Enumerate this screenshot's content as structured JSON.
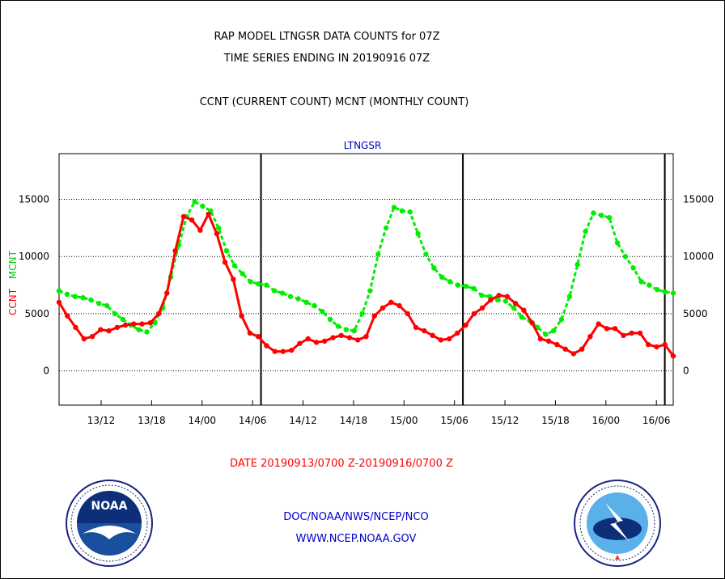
{
  "header": {
    "title_line1": "RAP MODEL LTNGSR DATA COUNTS for 07Z",
    "title_line2": "TIME SERIES ENDING IN 20190916 07Z",
    "subtitle": "CCNT (CURRENT COUNT) MCNT (MONTHLY COUNT)"
  },
  "chart_data": {
    "type": "line",
    "title": "LTNGSR",
    "ylabel_ccnt": "CCNT",
    "ylabel_mcnt": "MCNT",
    "xlabel": "DATE 20190913/0700 Z-20190916/0700 Z",
    "ylim": [
      -3000,
      19000
    ],
    "yticks": [
      0,
      5000,
      10000,
      15000
    ],
    "ytick_labels": [
      "0",
      "5000",
      "10000",
      "15000"
    ],
    "xlim_hours": [
      7,
      80
    ],
    "xticks": [
      {
        "hours": 12,
        "label": "13/12"
      },
      {
        "hours": 18,
        "label": "13/18"
      },
      {
        "hours": 24,
        "label": "14/00"
      },
      {
        "hours": 30,
        "label": "14/06"
      },
      {
        "hours": 36,
        "label": "14/12"
      },
      {
        "hours": 42,
        "label": "14/18"
      },
      {
        "hours": 48,
        "label": "15/00"
      },
      {
        "hours": 54,
        "label": "15/06"
      },
      {
        "hours": 60,
        "label": "15/12"
      },
      {
        "hours": 66,
        "label": "15/18"
      },
      {
        "hours": 72,
        "label": "16/00"
      },
      {
        "hours": 78,
        "label": "16/06"
      }
    ],
    "vertical_lines_hours": [
      31,
      55,
      79
    ],
    "grid_y": true,
    "series": [
      {
        "name": "CCNT",
        "color": "#ff0000",
        "values": [
          6000,
          4800,
          3800,
          2800,
          3000,
          3600,
          3500,
          3800,
          4000,
          4100,
          4100,
          4200,
          5000,
          6800,
          10500,
          13500,
          13200,
          12300,
          13700,
          12000,
          9500,
          8000,
          4800,
          3300,
          3000,
          2200,
          1700,
          1700,
          1800,
          2400,
          2800,
          2500,
          2600,
          2900,
          3100,
          2900,
          2700,
          3000,
          4800,
          5500,
          6000,
          5700,
          5000,
          3800,
          3500,
          3100,
          2700,
          2800,
          3300,
          4000,
          5000,
          5500,
          6200,
          6600,
          6500,
          5900,
          5300,
          4200,
          2800,
          2600,
          2300,
          1900,
          1500,
          1900,
          3000,
          4100,
          3700,
          3700,
          3100,
          3300,
          3300,
          2300,
          2100,
          2300,
          1300
        ]
      },
      {
        "name": "MCNT",
        "color": "#00ee00",
        "values": [
          7000,
          6700,
          6500,
          6400,
          6200,
          5900,
          5700,
          5000,
          4500,
          4000,
          3600,
          3400,
          4200,
          5500,
          8200,
          11000,
          13500,
          14800,
          14400,
          14000,
          12500,
          10500,
          9200,
          8500,
          7800,
          7600,
          7500,
          7000,
          6800,
          6500,
          6300,
          6000,
          5700,
          5200,
          4500,
          3900,
          3600,
          3500,
          5000,
          7000,
          10200,
          12500,
          14300,
          14000,
          13900,
          12000,
          10200,
          9000,
          8200,
          7800,
          7500,
          7400,
          7200,
          6600,
          6500,
          6200,
          6100,
          5500,
          4700,
          4400,
          3800,
          3200,
          3500,
          4500,
          6500,
          9300,
          12200,
          13800,
          13600,
          13400,
          11200,
          10000,
          9000,
          7800,
          7500,
          7100,
          6900,
          6800
        ]
      }
    ]
  },
  "footer": {
    "agency": "DOC/NOAA/NWS/NCEP/NCO",
    "website": "WWW.NCEP.NOAA.GOV",
    "noaa_logo_text": "NOAA",
    "nws_logo_text": "NATIONAL WEATHER SERVICE"
  }
}
